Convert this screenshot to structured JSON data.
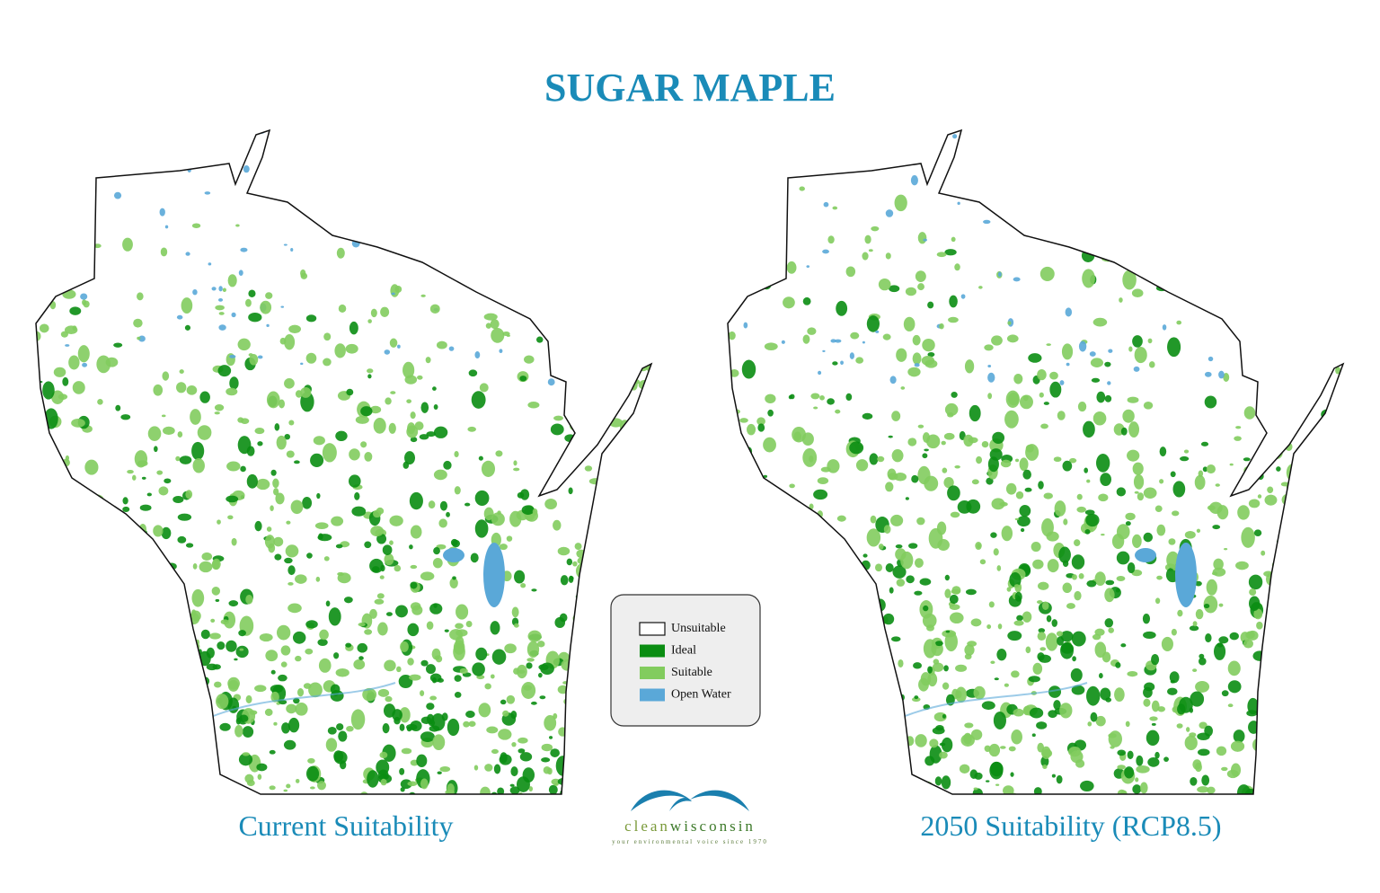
{
  "title": "SUGAR MAPLE",
  "maps": [
    {
      "label": "Current Suitability"
    },
    {
      "label": "2050 Suitability (RCP8.5)"
    }
  ],
  "legend": [
    {
      "label": "Unsuitable",
      "color": "#ffffff"
    },
    {
      "label": "Ideal",
      "color": "#0a8d12"
    },
    {
      "label": "Suitable",
      "color": "#82cc5e"
    },
    {
      "label": "Open Water",
      "color": "#5aa8d8"
    }
  ],
  "logo": {
    "name_start": "clean",
    "name_end": "wisconsin",
    "tagline": "your environmental voice since 1970"
  }
}
